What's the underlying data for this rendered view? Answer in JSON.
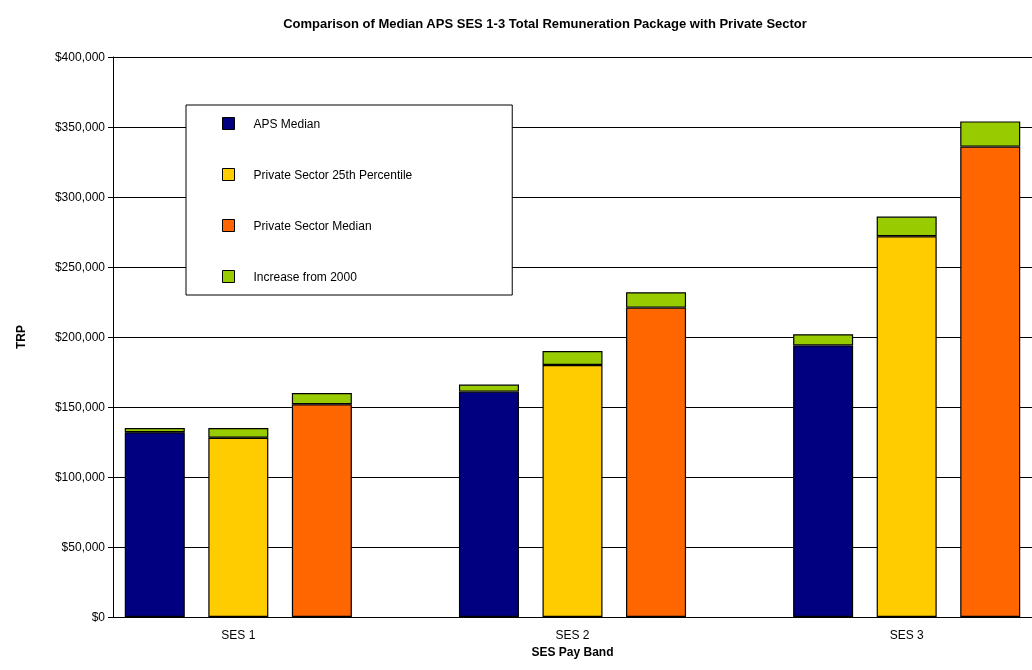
{
  "chart_data": {
    "type": "bar",
    "title": "Comparison of Median APS SES 1-3 Total Remuneration Package with Private Sector",
    "xlabel": "SES Pay Band",
    "ylabel": "TRP",
    "categories": [
      null,
      "SES 1",
      null,
      null,
      null,
      "SES 2",
      null,
      null,
      null,
      "SES 3",
      null
    ],
    "stacked": true,
    "series": [
      {
        "name": "APS Median",
        "color": "#000080",
        "values": [
          132000,
          null,
          null,
          null,
          161000,
          null,
          null,
          null,
          194000,
          null,
          null
        ]
      },
      {
        "name": "Private Sector 25th Percentile",
        "color": "#ffcc00",
        "values": [
          null,
          128000,
          null,
          null,
          null,
          180000,
          null,
          null,
          null,
          272000,
          null
        ]
      },
      {
        "name": "Private Sector Median",
        "color": "#ff6600",
        "values": [
          null,
          null,
          152000,
          null,
          null,
          null,
          221000,
          null,
          null,
          null,
          336000
        ]
      },
      {
        "name": "Increase from 2000",
        "color": "#99cc00",
        "values": [
          3000,
          7000,
          8000,
          null,
          5000,
          10000,
          11000,
          null,
          8000,
          14000,
          18000
        ]
      }
    ],
    "ylim": [
      0,
      400000
    ],
    "yticks": [
      {
        "value": 0,
        "label": "$0"
      },
      {
        "value": 50000,
        "label": "$50,000"
      },
      {
        "value": 100000,
        "label": "$100,000"
      },
      {
        "value": 150000,
        "label": "$150,000"
      },
      {
        "value": 200000,
        "label": "$200,000"
      },
      {
        "value": 250000,
        "label": "$250,000"
      },
      {
        "value": 300000,
        "label": "$300,000"
      },
      {
        "value": 350000,
        "label": "$350,000"
      },
      {
        "value": 400000,
        "label": "$400,000"
      }
    ],
    "grid": "y",
    "legend": "top left"
  }
}
